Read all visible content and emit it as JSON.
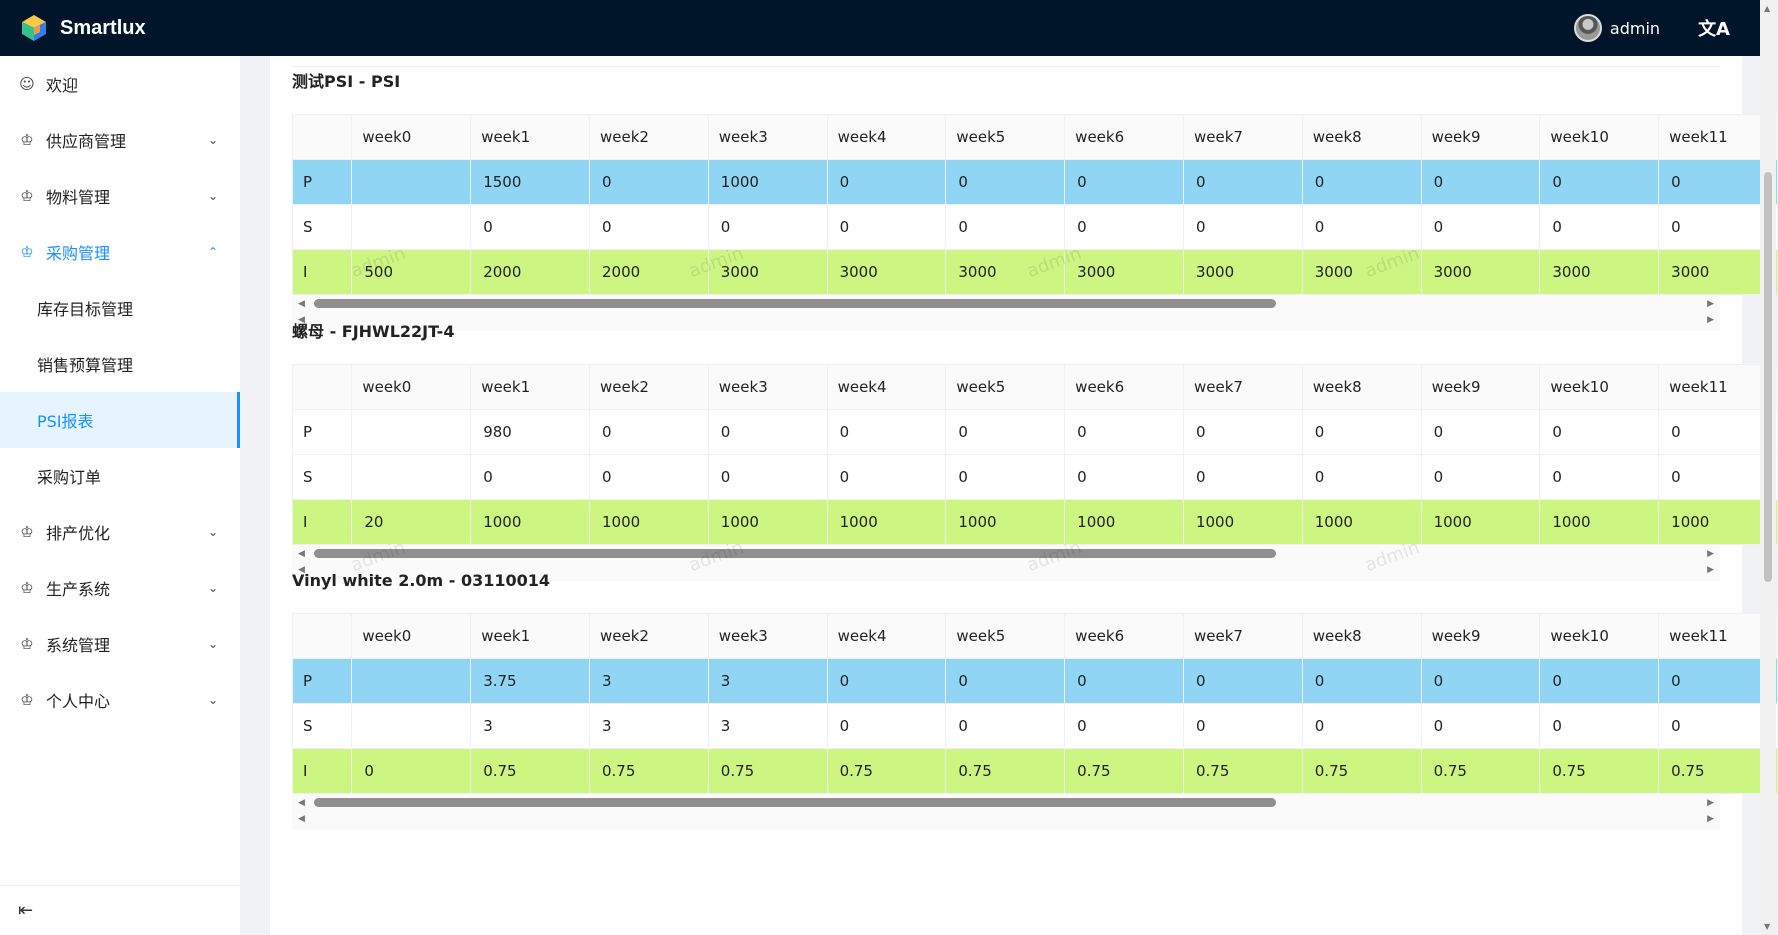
{
  "app": {
    "title": "Smartlux"
  },
  "header": {
    "user_name": "admin",
    "lang_icon": "文A"
  },
  "sidebar": {
    "items": [
      {
        "label": "欢迎",
        "icon": "smile-icon",
        "glyph": "☺",
        "has_chevron": false
      },
      {
        "label": "供应商管理",
        "icon": "crown-icon",
        "glyph": "♔",
        "has_chevron": true,
        "chevron": "⌄"
      },
      {
        "label": "物料管理",
        "icon": "crown-icon",
        "glyph": "♔",
        "has_chevron": true,
        "chevron": "⌄"
      },
      {
        "label": "采购管理",
        "icon": "crown-icon",
        "glyph": "♔",
        "has_chevron": true,
        "chevron": "⌃",
        "open": true
      },
      {
        "label": "排产优化",
        "icon": "crown-icon",
        "glyph": "♔",
        "has_chevron": true,
        "chevron": "⌄"
      },
      {
        "label": "生产系统",
        "icon": "crown-icon",
        "glyph": "♔",
        "has_chevron": true,
        "chevron": "⌄"
      },
      {
        "label": "系统管理",
        "icon": "crown-icon",
        "glyph": "♔",
        "has_chevron": true,
        "chevron": "⌄"
      },
      {
        "label": "个人中心",
        "icon": "crown-icon",
        "glyph": "♔",
        "has_chevron": true,
        "chevron": "⌄"
      }
    ],
    "sub_items": [
      {
        "label": "库存目标管理"
      },
      {
        "label": "销售预算管理"
      },
      {
        "label": "PSI报表",
        "active": true
      },
      {
        "label": "采购订单"
      }
    ],
    "collapse_glyph": "⇤"
  },
  "columns": [
    "week0",
    "week1",
    "week2",
    "week3",
    "week4",
    "week5",
    "week6",
    "week7",
    "week8",
    "week9",
    "week10",
    "week11"
  ],
  "sections": [
    {
      "title": "测试PSI - PSI",
      "rows": [
        {
          "label": "P",
          "values": [
            "",
            "1500",
            "0",
            "1000",
            "0",
            "0",
            "0",
            "0",
            "0",
            "0",
            "0",
            "0"
          ]
        },
        {
          "label": "S",
          "values": [
            "",
            "0",
            "0",
            "0",
            "0",
            "0",
            "0",
            "0",
            "0",
            "0",
            "0",
            "0"
          ]
        },
        {
          "label": "I",
          "values": [
            "500",
            "2000",
            "2000",
            "3000",
            "3000",
            "3000",
            "3000",
            "3000",
            "3000",
            "3000",
            "3000",
            "3000"
          ]
        }
      ],
      "p_highlight": true
    },
    {
      "title": "螺母 - FJHWL22JT-4",
      "rows": [
        {
          "label": "P",
          "values": [
            "",
            "980",
            "0",
            "0",
            "0",
            "0",
            "0",
            "0",
            "0",
            "0",
            "0",
            "0"
          ]
        },
        {
          "label": "S",
          "values": [
            "",
            "0",
            "0",
            "0",
            "0",
            "0",
            "0",
            "0",
            "0",
            "0",
            "0",
            "0"
          ]
        },
        {
          "label": "I",
          "values": [
            "20",
            "1000",
            "1000",
            "1000",
            "1000",
            "1000",
            "1000",
            "1000",
            "1000",
            "1000",
            "1000",
            "1000"
          ]
        }
      ],
      "p_highlight": false
    },
    {
      "title": "Vinyl white 2.0m - 03110014",
      "rows": [
        {
          "label": "P",
          "values": [
            "",
            "3.75",
            "3",
            "3",
            "0",
            "0",
            "0",
            "0",
            "0",
            "0",
            "0",
            "0"
          ]
        },
        {
          "label": "S",
          "values": [
            "",
            "3",
            "3",
            "3",
            "0",
            "0",
            "0",
            "0",
            "0",
            "0",
            "0",
            "0"
          ]
        },
        {
          "label": "I",
          "values": [
            "0",
            "0.75",
            "0.75",
            "0.75",
            "0.75",
            "0.75",
            "0.75",
            "0.75",
            "0.75",
            "0.75",
            "0.75",
            "0.75"
          ]
        }
      ],
      "p_highlight": true
    }
  ],
  "watermark_text": "admin",
  "colors": {
    "header_bg": "#001529",
    "accent": "#1890ff",
    "row_p": "#91d5f5",
    "row_i": "#ccf582"
  }
}
